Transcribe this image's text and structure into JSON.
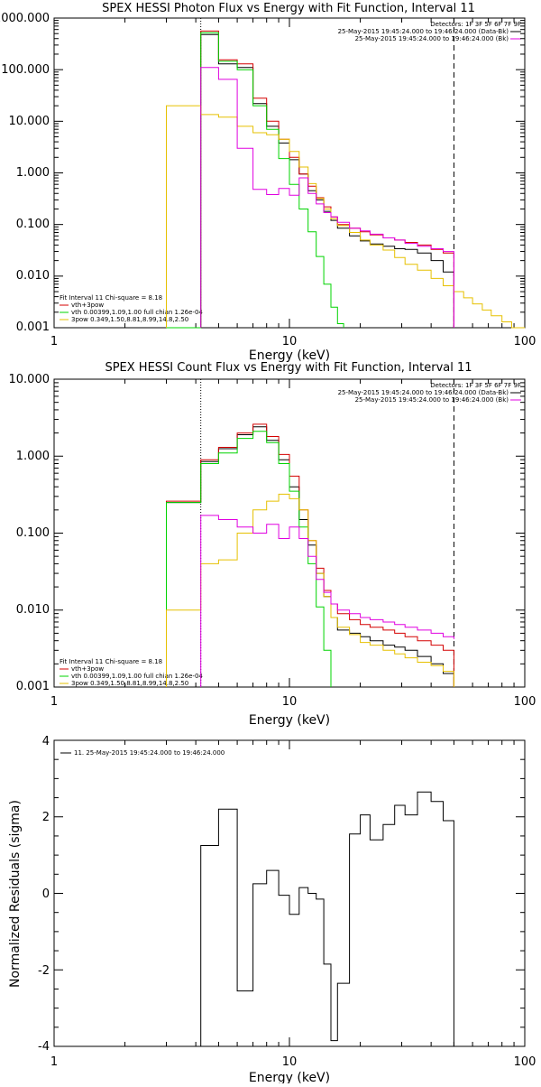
{
  "colors": {
    "background": "#ffffff",
    "axes": "#000000",
    "data": "#000000",
    "vth_plus_3pow": "#d40000",
    "vth": "#00d400",
    "3pow": "#e6c000",
    "background_series": "#e000e0"
  },
  "chart_data": [
    {
      "type": "line",
      "scale": "log-log",
      "step": true,
      "title": "SPEX HESSI Photon Flux vs Energy with Fit Function, Interval 11",
      "xlabel": "Energy (keV)",
      "ylabel": "",
      "xlim": [
        1,
        100
      ],
      "ylim": [
        0.001,
        1000
      ],
      "xticks": [
        "1",
        "10",
        "100"
      ],
      "yticks": [
        "0.001",
        "0.010",
        "0.100",
        "1.000",
        "10.000",
        "100.000",
        "1000.000"
      ],
      "grid": false,
      "legend_position": "top-right",
      "legend_header": "Detectors: 1F 3F 5F 6F 7F 9F",
      "legend": [
        {
          "label": "25-May-2015 19:45:24.000 to 19:46:24.000 (Data-Bk)",
          "color": "#000000"
        },
        {
          "label": "25-May-2015 19:45:24.000 to 19:46:24.000 (Bk)",
          "color": "#e000e0"
        }
      ],
      "fit_legend_position": "bottom-left",
      "fit_legend": [
        {
          "label": "Fit Interval 11    Chi-square = 8.18",
          "color": "#000000"
        },
        {
          "label": "vth+3pow",
          "color": "#d40000"
        },
        {
          "label": "vth 0.00399,1.09,1.00   full chian 1.26e-04",
          "color": "#00d400"
        },
        {
          "label": "3pow 0.349,1.50,8.81,8.99,14.8,2.50",
          "color": "#e6c000"
        }
      ],
      "vlines": [
        {
          "x": 4.2,
          "style": "dotted"
        },
        {
          "x": 50,
          "style": "dashed"
        }
      ],
      "series": [
        {
          "name": "Data-Bk",
          "color": "#000000",
          "edges": [
            4.2,
            5,
            6,
            7,
            8,
            9,
            10,
            11,
            12,
            13,
            14,
            15,
            16,
            18,
            20,
            22,
            25,
            28,
            31,
            35,
            40,
            45,
            50
          ],
          "values": [
            480,
            130,
            110,
            22,
            8,
            3.8,
            1.8,
            0.95,
            0.45,
            0.3,
            0.18,
            0.12,
            0.085,
            0.06,
            0.048,
            0.042,
            0.038,
            0.034,
            0.033,
            0.028,
            0.02,
            0.012
          ]
        },
        {
          "name": "vth+3pow",
          "color": "#d40000",
          "edges": [
            4.2,
            5,
            6,
            7,
            8,
            9,
            10,
            11,
            12,
            13,
            14,
            15,
            16,
            18,
            20,
            22,
            25,
            28,
            31,
            35,
            40,
            45,
            50
          ],
          "values": [
            560,
            155,
            130,
            28,
            10,
            4.5,
            2.0,
            0.95,
            0.55,
            0.33,
            0.22,
            0.14,
            0.1,
            0.085,
            0.072,
            0.063,
            0.055,
            0.05,
            0.045,
            0.04,
            0.033,
            0.028
          ]
        },
        {
          "name": "vth",
          "color": "#00d400",
          "edges": [
            3,
            4.2,
            5,
            6,
            7,
            8,
            9,
            10,
            11,
            12,
            13,
            14,
            15,
            16,
            17
          ],
          "values": [
            0.001,
            520,
            145,
            100,
            20,
            7,
            1.9,
            0.6,
            0.2,
            0.072,
            0.024,
            0.007,
            0.0025,
            0.0012
          ]
        },
        {
          "name": "3pow",
          "color": "#e6c000",
          "edges": [
            3,
            4.2,
            5,
            6,
            7,
            8,
            9,
            10,
            11,
            12,
            13,
            14,
            15,
            16,
            18,
            20,
            22,
            25,
            28,
            31,
            35,
            40,
            45,
            50,
            55,
            60,
            66,
            72,
            80,
            88,
            100
          ],
          "values": [
            20,
            13.5,
            12,
            8,
            6,
            5.5,
            4.5,
            2.6,
            1.3,
            0.62,
            0.32,
            0.2,
            0.13,
            0.095,
            0.07,
            0.05,
            0.04,
            0.032,
            0.023,
            0.017,
            0.013,
            0.009,
            0.0065,
            0.005,
            0.0038,
            0.0029,
            0.0022,
            0.0017,
            0.0013,
            0.001
          ]
        },
        {
          "name": "Bk",
          "color": "#e000e0",
          "edges": [
            4.2,
            5,
            6,
            7,
            8,
            9,
            10,
            11,
            12,
            13,
            14,
            15,
            16,
            18,
            20,
            22,
            25,
            28,
            31,
            35,
            40,
            45,
            50
          ],
          "values": [
            110,
            65,
            3,
            0.48,
            0.38,
            0.5,
            0.37,
            0.8,
            0.4,
            0.25,
            0.17,
            0.14,
            0.11,
            0.085,
            0.075,
            0.065,
            0.055,
            0.05,
            0.043,
            0.038,
            0.034,
            0.03
          ]
        }
      ]
    },
    {
      "type": "line",
      "scale": "log-log",
      "step": true,
      "title": "SPEX HESSI Count Flux vs Energy with Fit Function, Interval 11",
      "xlabel": "Energy (keV)",
      "ylabel": "",
      "xlim": [
        1,
        100
      ],
      "ylim": [
        0.001,
        10
      ],
      "xticks": [
        "1",
        "10",
        "100"
      ],
      "yticks": [
        "0.001",
        "0.010",
        "0.100",
        "1.000",
        "10.000"
      ],
      "grid": false,
      "legend_position": "top-right",
      "legend_header": "Detectors: 1F 3F 5F 6F 7F 9F",
      "legend": [
        {
          "label": "25-May-2015 19:45:24.000 to 19:46:24.000 (Data-Bk)",
          "color": "#000000"
        },
        {
          "label": "25-May-2015 19:45:24.000 to 19:46:24.000 (Bk)",
          "color": "#e000e0"
        }
      ],
      "fit_legend_position": "bottom-left",
      "fit_legend": [
        {
          "label": "Fit Interval 11    Chi-square = 8.18",
          "color": "#000000"
        },
        {
          "label": "vth+3pow",
          "color": "#d40000"
        },
        {
          "label": "vth 0.00399,1.09,1.00   full chian 1.26e-04",
          "color": "#00d400"
        },
        {
          "label": "3pow 0.349,1.50,8.81,8.99,14.8,2.50",
          "color": "#e6c000"
        }
      ],
      "vlines": [
        {
          "x": 4.2,
          "style": "dotted"
        },
        {
          "x": 50,
          "style": "dashed"
        }
      ],
      "series": [
        {
          "name": "Data-Bk",
          "color": "#000000",
          "edges": [
            3,
            4.2,
            5,
            6,
            7,
            8,
            9,
            10,
            11,
            12,
            13,
            14,
            15,
            16,
            18,
            20,
            22,
            25,
            28,
            31,
            35,
            40,
            45,
            50
          ],
          "values": [
            0.25,
            0.85,
            1.25,
            1.9,
            2.4,
            1.6,
            0.9,
            0.4,
            0.15,
            0.07,
            0.03,
            0.015,
            0.008,
            0.0055,
            0.005,
            0.0045,
            0.004,
            0.0035,
            0.0033,
            0.003,
            0.0025,
            0.002,
            0.0015
          ]
        },
        {
          "name": "vth+3pow",
          "color": "#d40000",
          "edges": [
            3,
            4.2,
            5,
            6,
            7,
            8,
            9,
            10,
            11,
            12,
            13,
            14,
            15,
            16,
            18,
            20,
            22,
            25,
            28,
            31,
            35,
            40,
            45,
            50
          ],
          "values": [
            0.26,
            0.9,
            1.3,
            2.0,
            2.6,
            1.8,
            1.05,
            0.55,
            0.2,
            0.08,
            0.035,
            0.018,
            0.012,
            0.009,
            0.0075,
            0.0065,
            0.006,
            0.0055,
            0.005,
            0.0045,
            0.004,
            0.0035,
            0.003
          ]
        },
        {
          "name": "vth",
          "color": "#00d400",
          "edges": [
            3,
            4.2,
            5,
            6,
            7,
            8,
            9,
            10,
            11,
            12,
            13,
            14,
            15
          ],
          "values": [
            0.25,
            0.8,
            1.1,
            1.7,
            2.1,
            1.5,
            0.8,
            0.35,
            0.12,
            0.04,
            0.011,
            0.003
          ]
        },
        {
          "name": "3pow",
          "color": "#e6c000",
          "edges": [
            3,
            4.2,
            5,
            6,
            7,
            8,
            9,
            10,
            11,
            12,
            13,
            14,
            15,
            16,
            18,
            20,
            22,
            25,
            28,
            31,
            35,
            40,
            45,
            50
          ],
          "values": [
            0.01,
            0.04,
            0.045,
            0.1,
            0.2,
            0.26,
            0.32,
            0.28,
            0.2,
            0.08,
            0.03,
            0.015,
            0.008,
            0.006,
            0.0048,
            0.0038,
            0.0035,
            0.003,
            0.0027,
            0.0024,
            0.0021,
            0.0019,
            0.0016
          ]
        },
        {
          "name": "Bk",
          "color": "#e000e0",
          "edges": [
            4.2,
            5,
            6,
            7,
            8,
            9,
            10,
            11,
            12,
            13,
            14,
            15,
            16,
            18,
            20,
            22,
            25,
            28,
            31,
            35,
            40,
            45,
            50
          ],
          "values": [
            0.17,
            0.15,
            0.12,
            0.1,
            0.13,
            0.085,
            0.12,
            0.085,
            0.05,
            0.025,
            0.017,
            0.012,
            0.01,
            0.009,
            0.008,
            0.0075,
            0.007,
            0.0065,
            0.006,
            0.0055,
            0.005,
            0.0045,
            0.0042
          ]
        }
      ]
    },
    {
      "type": "line",
      "scale": "log-linear",
      "step": true,
      "title": "",
      "xlabel": "Energy (keV)",
      "ylabel": "Normalized Residuals (sigma)",
      "xlim": [
        1,
        100
      ],
      "ylim": [
        -4,
        4
      ],
      "xticks": [
        "1",
        "10",
        "100"
      ],
      "yticks": [
        "-4",
        "-2",
        "0",
        "2",
        "4"
      ],
      "grid": false,
      "legend_position": "top-left",
      "legend": [
        {
          "label": "11. 25-May-2015 19:45:24.000 to 19:46:24.000",
          "color": "#000000"
        }
      ],
      "series": [
        {
          "name": "11",
          "color": "#000000",
          "edges": [
            4.2,
            5,
            6,
            7,
            8,
            9,
            10,
            11,
            12,
            13,
            14,
            15,
            16,
            18,
            20,
            22,
            25,
            28,
            31,
            35,
            40,
            45,
            50
          ],
          "values": [
            1.25,
            2.2,
            -2.55,
            0.25,
            0.6,
            -0.05,
            -0.55,
            0.15,
            0.0,
            -0.15,
            -1.85,
            -3.85,
            -2.35,
            1.55,
            2.05,
            1.4,
            1.8,
            2.3,
            2.05,
            2.65,
            2.4,
            1.9
          ]
        }
      ]
    }
  ]
}
